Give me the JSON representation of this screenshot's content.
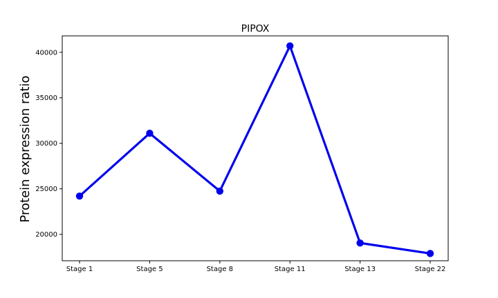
{
  "chart_data": {
    "type": "line",
    "title": "PIPOX",
    "xlabel": "",
    "ylabel": "Protein expression ratio",
    "categories": [
      "Stage 1",
      "Stage 5",
      "Stage 8",
      "Stage 11",
      "Stage 13",
      "Stage 22"
    ],
    "series": [
      {
        "values": [
          24200,
          31100,
          24750,
          40700,
          19050,
          17900
        ],
        "color": "#0000ee"
      }
    ],
    "ylim": [
      17100,
      41800
    ],
    "yticks": [
      20000,
      25000,
      30000,
      35000,
      40000
    ],
    "ytick_labels": [
      "20000",
      "25000",
      "30000",
      "35000",
      "40000"
    ],
    "grid": false,
    "legend": "none"
  }
}
